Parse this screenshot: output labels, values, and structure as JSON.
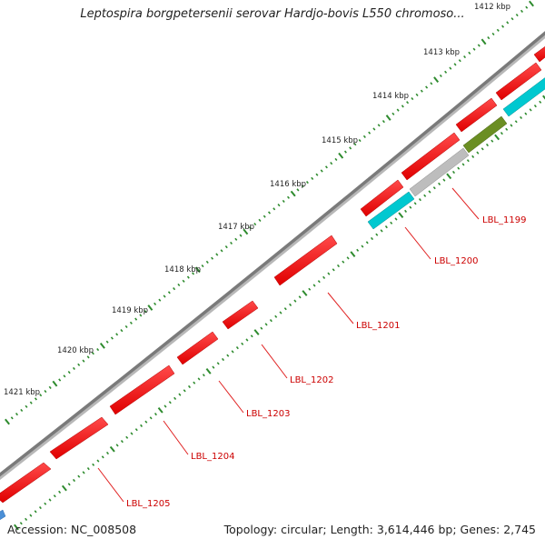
{
  "title": "Leptospira borgpetersenii serovar Hardjo-bovis L550 chromoso...",
  "footer": {
    "accession": "Accession: NC_008508",
    "summary": "Topology: circular; Length: 3,614,446 bp; Genes: 2,745"
  },
  "ruler": [
    "1412 kbp",
    "1413 kbp",
    "1414 kbp",
    "1415 kbp",
    "1416 kbp",
    "1417 kbp",
    "1418 kbp",
    "1419 kbp",
    "1420 kbp",
    "1421 kbp"
  ],
  "gene_labels": [
    "LBL_1199",
    "LBL_1200",
    "LBL_1201",
    "LBL_1202",
    "LBL_1203",
    "LBL_1204",
    "LBL_1205"
  ],
  "colors": {
    "forward_gene": "#ff0000",
    "reverse_cds": "#00c8d0",
    "pseudo_gray": "#bdbdbd",
    "olive": "#6b8e23",
    "backbone": "#808080",
    "ticks": "#2e8b2e",
    "label": "#cc0000"
  }
}
